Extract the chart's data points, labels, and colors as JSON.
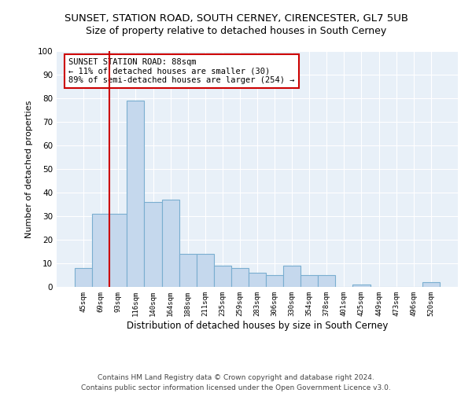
{
  "title": "SUNSET, STATION ROAD, SOUTH CERNEY, CIRENCESTER, GL7 5UB",
  "subtitle": "Size of property relative to detached houses in South Cerney",
  "xlabel": "Distribution of detached houses by size in South Cerney",
  "ylabel": "Number of detached properties",
  "bar_color": "#c5d8ed",
  "bar_edge_color": "#7aaed0",
  "categories": [
    "45sqm",
    "69sqm",
    "93sqm",
    "116sqm",
    "140sqm",
    "164sqm",
    "188sqm",
    "211sqm",
    "235sqm",
    "259sqm",
    "283sqm",
    "306sqm",
    "330sqm",
    "354sqm",
    "378sqm",
    "401sqm",
    "425sqm",
    "449sqm",
    "473sqm",
    "496sqm",
    "520sqm"
  ],
  "values": [
    8,
    31,
    31,
    79,
    36,
    37,
    14,
    14,
    9,
    8,
    6,
    5,
    9,
    5,
    5,
    0,
    1,
    0,
    0,
    0,
    2
  ],
  "vline_color": "#cc0000",
  "annotation_line1": "SUNSET STATION ROAD: 88sqm",
  "annotation_line2": "← 11% of detached houses are smaller (30)",
  "annotation_line3": "89% of semi-detached houses are larger (254) →",
  "annotation_box_color": "#cc0000",
  "ylim": [
    0,
    100
  ],
  "yticks": [
    0,
    10,
    20,
    30,
    40,
    50,
    60,
    70,
    80,
    90,
    100
  ],
  "footer_line1": "Contains HM Land Registry data © Crown copyright and database right 2024.",
  "footer_line2": "Contains public sector information licensed under the Open Government Licence v3.0.",
  "bg_color": "#e8f0f8",
  "fig_bg_color": "#ffffff",
  "title_fontsize": 9.5,
  "subtitle_fontsize": 9,
  "annotation_fontsize": 7.5,
  "footer_fontsize": 6.5,
  "ylabel_fontsize": 8,
  "xlabel_fontsize": 8.5
}
